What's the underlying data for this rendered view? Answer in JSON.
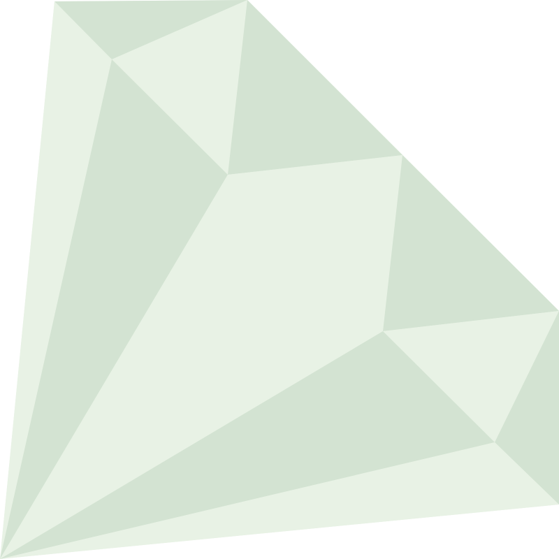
{
  "graphic": {
    "name": "faceted-gem",
    "colors": {
      "light_facet": "#e8f2e5",
      "dark_facet": "#d3e3d2",
      "background": "#ffffff"
    }
  }
}
